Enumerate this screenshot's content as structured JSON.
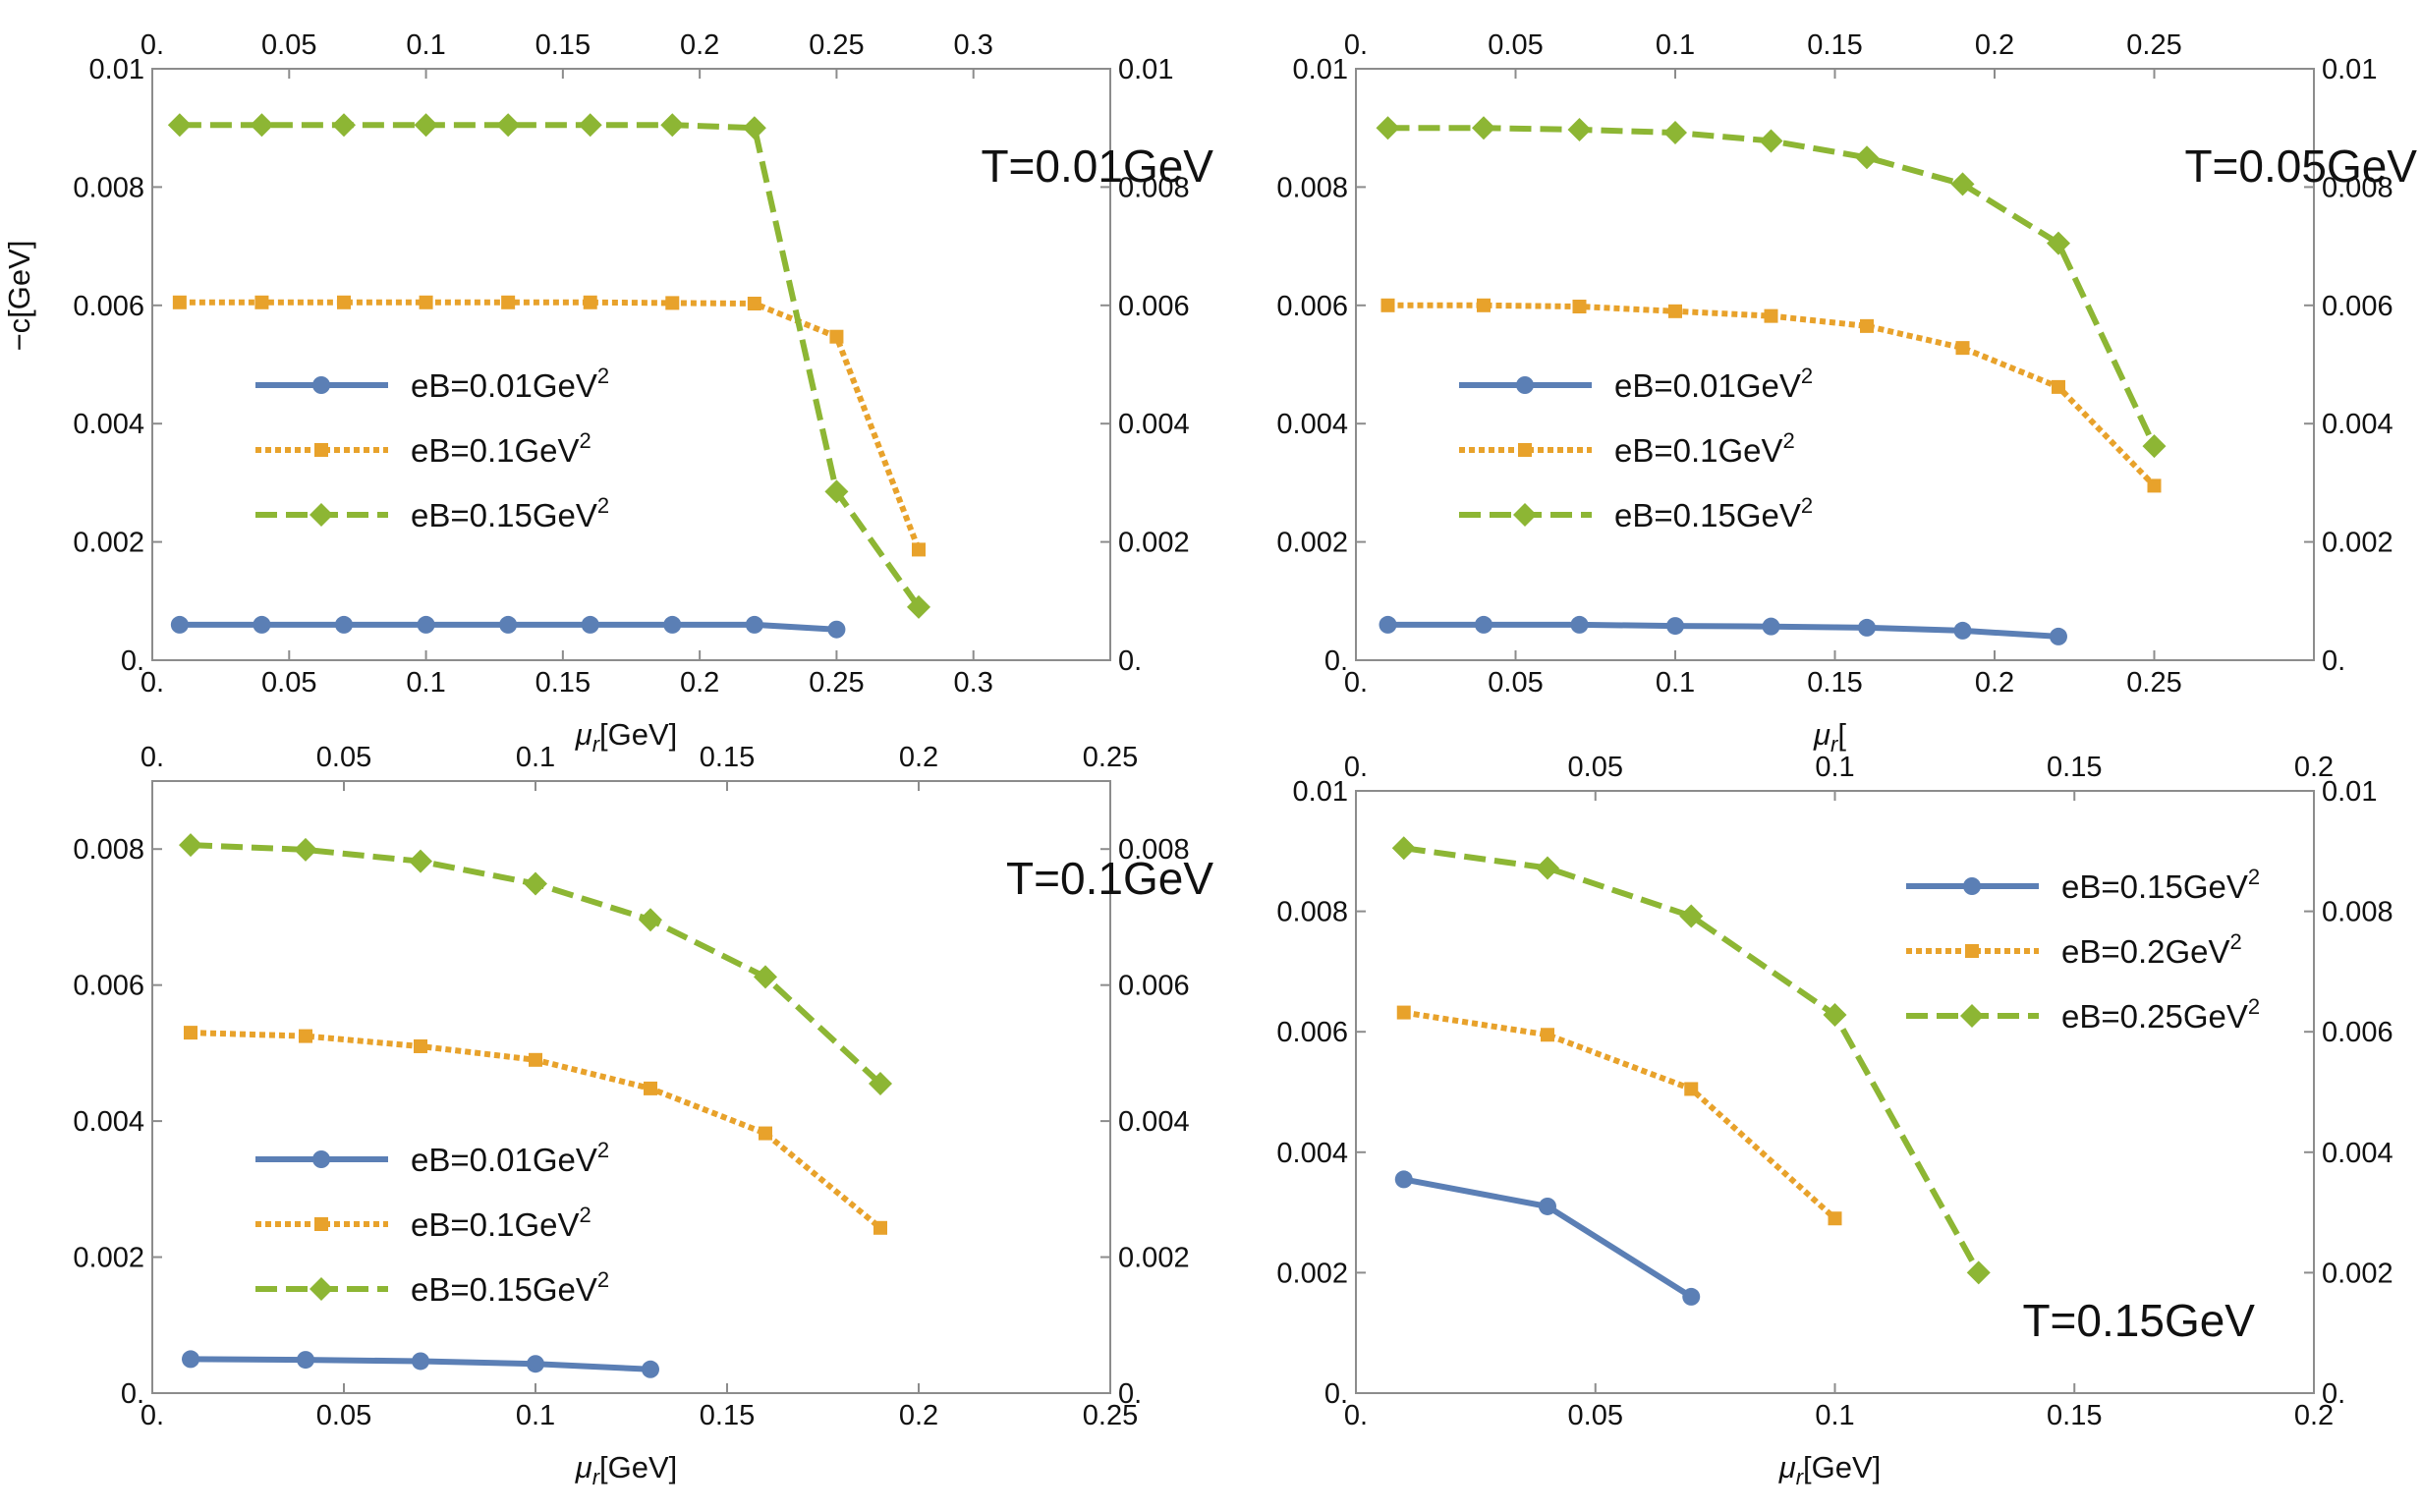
{
  "chart_data": [
    {
      "type": "line",
      "title": "T=0.01GeV",
      "xlabel_prefix": "μ",
      "xlabel_sub": "r",
      "xlabel_suffix": "[GeV]",
      "ylabel": "−c[GeV]",
      "xlim": [
        0,
        0.35
      ],
      "ylim": [
        0,
        0.01
      ],
      "xticks": [
        0,
        0.05,
        0.1,
        0.15,
        0.2,
        0.25,
        0.3
      ],
      "xtick_labels": [
        "0.",
        "0.05",
        "0.1",
        "0.15",
        "0.2",
        "0.25",
        "0.3"
      ],
      "yticks": [
        0,
        0.002,
        0.004,
        0.006,
        0.008,
        0.01
      ],
      "ytick_labels": [
        "0.",
        "0.002",
        "0.004",
        "0.006",
        "0.008",
        "0.01"
      ],
      "legend_position": "middle-left",
      "title_position": "top-right",
      "series": [
        {
          "name": "eB=0.01GeV",
          "name_sup": "2",
          "color": "#5b7fb5",
          "style": "solid",
          "marker": "circle",
          "x": [
            0.01,
            0.04,
            0.07,
            0.1,
            0.13,
            0.16,
            0.19,
            0.22,
            0.25
          ],
          "y": [
            0.0006,
            0.0006,
            0.0006,
            0.0006,
            0.0006,
            0.0006,
            0.0006,
            0.0006,
            0.00052
          ]
        },
        {
          "name": "eB=0.1GeV",
          "name_sup": "2",
          "color": "#e8a22b",
          "style": "dotted",
          "marker": "square",
          "x": [
            0.01,
            0.04,
            0.07,
            0.1,
            0.13,
            0.16,
            0.19,
            0.22,
            0.25,
            0.28
          ],
          "y": [
            0.00605,
            0.00605,
            0.00605,
            0.00605,
            0.00605,
            0.00605,
            0.00604,
            0.00603,
            0.00547,
            0.00187
          ]
        },
        {
          "name": "eB=0.15GeV",
          "name_sup": "2",
          "color": "#8db634",
          "style": "dashed",
          "marker": "diamond",
          "x": [
            0.01,
            0.04,
            0.07,
            0.1,
            0.13,
            0.16,
            0.19,
            0.22,
            0.25,
            0.28
          ],
          "y": [
            0.00905,
            0.00905,
            0.00905,
            0.00905,
            0.00905,
            0.00905,
            0.00905,
            0.009,
            0.00285,
            0.0009
          ]
        }
      ]
    },
    {
      "type": "line",
      "title": "T=0.05GeV",
      "xlabel_prefix": "μ",
      "xlabel_sub": "r",
      "xlabel_suffix": "[",
      "ylabel": "",
      "xlim": [
        0,
        0.3
      ],
      "ylim": [
        0,
        0.01
      ],
      "xticks": [
        0,
        0.05,
        0.1,
        0.15,
        0.2,
        0.25
      ],
      "xtick_labels": [
        "0.",
        "0.05",
        "0.1",
        "0.15",
        "0.2",
        "0.25"
      ],
      "yticks": [
        0,
        0.002,
        0.004,
        0.006,
        0.008,
        0.01
      ],
      "ytick_labels": [
        "0.",
        "0.002",
        "0.004",
        "0.006",
        "0.008",
        "0.01"
      ],
      "legend_position": "middle-left",
      "title_position": "top-right",
      "series": [
        {
          "name": "eB=0.01GeV",
          "name_sup": "2",
          "color": "#5b7fb5",
          "style": "solid",
          "marker": "circle",
          "x": [
            0.01,
            0.04,
            0.07,
            0.1,
            0.13,
            0.16,
            0.19,
            0.22
          ],
          "y": [
            0.0006,
            0.0006,
            0.0006,
            0.00058,
            0.00057,
            0.00055,
            0.0005,
            0.0004
          ]
        },
        {
          "name": "eB=0.1GeV",
          "name_sup": "2",
          "color": "#e8a22b",
          "style": "dotted",
          "marker": "square",
          "x": [
            0.01,
            0.04,
            0.07,
            0.1,
            0.13,
            0.16,
            0.19,
            0.22,
            0.25
          ],
          "y": [
            0.006,
            0.006,
            0.00598,
            0.0059,
            0.00582,
            0.00565,
            0.00528,
            0.00462,
            0.00295
          ]
        },
        {
          "name": "eB=0.15GeV",
          "name_sup": "2",
          "color": "#8db634",
          "style": "dashed",
          "marker": "diamond",
          "x": [
            0.01,
            0.04,
            0.07,
            0.1,
            0.13,
            0.16,
            0.19,
            0.22,
            0.25
          ],
          "y": [
            0.009,
            0.009,
            0.00897,
            0.00892,
            0.00878,
            0.0085,
            0.00805,
            0.00705,
            0.00362
          ]
        }
      ]
    },
    {
      "type": "line",
      "title": "T=0.1GeV",
      "xlabel_prefix": "μ",
      "xlabel_sub": "r",
      "xlabel_suffix": "[GeV]",
      "ylabel": "",
      "xlim": [
        0,
        0.25
      ],
      "ylim": [
        0,
        0.009
      ],
      "xticks": [
        0,
        0.05,
        0.1,
        0.15,
        0.2,
        0.25
      ],
      "xtick_labels": [
        "0.",
        "0.05",
        "0.1",
        "0.15",
        "0.2",
        "0.25"
      ],
      "yticks": [
        0,
        0.002,
        0.004,
        0.006,
        0.008
      ],
      "ytick_labels": [
        "0.",
        "0.002",
        "0.004",
        "0.006",
        "0.008"
      ],
      "legend_position": "lower-left",
      "title_position": "top-right",
      "series": [
        {
          "name": "eB=0.01GeV",
          "name_sup": "2",
          "color": "#5b7fb5",
          "style": "solid",
          "marker": "circle",
          "x": [
            0.01,
            0.04,
            0.07,
            0.1,
            0.13
          ],
          "y": [
            0.0005,
            0.00049,
            0.00047,
            0.00043,
            0.00035
          ]
        },
        {
          "name": "eB=0.1GeV",
          "name_sup": "2",
          "color": "#e8a22b",
          "style": "dotted",
          "marker": "square",
          "x": [
            0.01,
            0.04,
            0.07,
            0.1,
            0.13,
            0.16,
            0.19
          ],
          "y": [
            0.0053,
            0.00525,
            0.0051,
            0.0049,
            0.00448,
            0.00382,
            0.00243
          ]
        },
        {
          "name": "eB=0.15GeV",
          "name_sup": "2",
          "color": "#8db634",
          "style": "dashed",
          "marker": "diamond",
          "x": [
            0.01,
            0.04,
            0.07,
            0.1,
            0.13,
            0.16,
            0.19
          ],
          "y": [
            0.00806,
            0.00799,
            0.00782,
            0.00749,
            0.00696,
            0.00612,
            0.00455
          ]
        }
      ]
    },
    {
      "type": "line",
      "title": "T=0.15GeV",
      "xlabel_prefix": "μ",
      "xlabel_sub": "r",
      "xlabel_suffix": "[GeV]",
      "ylabel": "",
      "xlim": [
        0,
        0.2
      ],
      "ylim": [
        0,
        0.01
      ],
      "xticks": [
        0,
        0.05,
        0.1,
        0.15,
        0.2
      ],
      "xtick_labels": [
        "0.",
        "0.05",
        "0.1",
        "0.15",
        "0.2"
      ],
      "yticks": [
        0,
        0.002,
        0.004,
        0.006,
        0.008,
        0.01
      ],
      "ytick_labels": [
        "0.",
        "0.002",
        "0.004",
        "0.006",
        "0.008",
        "0.01"
      ],
      "legend_position": "top-right",
      "title_position": "bottom-right",
      "series": [
        {
          "name": "eB=0.15GeV",
          "name_sup": "2",
          "color": "#5b7fb5",
          "style": "solid",
          "marker": "circle",
          "x": [
            0.01,
            0.04,
            0.07
          ],
          "y": [
            0.00355,
            0.0031,
            0.0016
          ]
        },
        {
          "name": "eB=0.2GeV",
          "name_sup": "2",
          "color": "#e8a22b",
          "style": "dotted",
          "marker": "square",
          "x": [
            0.01,
            0.04,
            0.07,
            0.1
          ],
          "y": [
            0.00632,
            0.00595,
            0.00505,
            0.0029
          ]
        },
        {
          "name": "eB=0.25GeV",
          "name_sup": "2",
          "color": "#8db634",
          "style": "dashed",
          "marker": "diamond",
          "x": [
            0.01,
            0.04,
            0.07,
            0.1,
            0.13
          ],
          "y": [
            0.00905,
            0.00872,
            0.00792,
            0.00628,
            0.002
          ]
        }
      ]
    }
  ]
}
